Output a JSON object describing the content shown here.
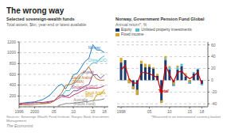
{
  "title": "The wrong way",
  "annotations": [
    {
      "text": "The Economist"
    }
  ],
  "chart_data": [
    {
      "type": "line",
      "title": "Selected sovereign-wealth funds",
      "ylabel": "Total assets, $bn, year-end or latest available",
      "source": "Sources: Sovereign Wealth Fund Institute; Norges Bank Investment Management",
      "grid": true,
      "xlim": [
        1996,
        2019
      ],
      "xticks": [
        1996,
        2000,
        {
          "value": 2005,
          "label": "05"
        },
        {
          "value": 2010,
          "label": "10"
        },
        {
          "value": 2015,
          "label": "15"
        },
        {
          "value": 2018,
          "label": "18"
        }
      ],
      "ylim": [
        0,
        1200
      ],
      "yticks": [
        200,
        400,
        600,
        800,
        1000,
        1200
      ],
      "series": [
        {
          "name": "Norway",
          "color": "#1f7bbf",
          "x": [
            1996,
            1997,
            1998,
            1999,
            2000,
            2001,
            2002,
            2003,
            2004,
            2005,
            2006,
            2007,
            2008,
            2009,
            2010,
            2011,
            2012,
            2013,
            2014,
            2015,
            2016,
            2017,
            2018
          ],
          "values": [
            40,
            65,
            80,
            85,
            90,
            110,
            130,
            170,
            220,
            300,
            380,
            420,
            330,
            450,
            590,
            620,
            730,
            840,
            900,
            1150,
            1050,
            1050,
            1000
          ]
        },
        {
          "name": "China (CIC)",
          "color": "#4db8d0",
          "x": [
            2007,
            2008,
            2009,
            2010,
            2011,
            2012,
            2013,
            2014,
            2015,
            2016,
            2017,
            2018
          ],
          "values": [
            200,
            298,
            300,
            410,
            480,
            575,
            652,
            747,
            814,
            813,
            900,
            941
          ]
        },
        {
          "name": "Kuwait",
          "color": "#7b4fa0",
          "x": [
            1996,
            1997,
            1998,
            1999,
            2000,
            2001,
            2002,
            2003,
            2004,
            2005,
            2006,
            2007,
            2008,
            2009,
            2010,
            2011,
            2012,
            2013,
            2014,
            2015,
            2016,
            2017,
            2018
          ],
          "values": [
            50,
            60,
            60,
            65,
            75,
            80,
            70,
            75,
            90,
            110,
            180,
            220,
            200,
            220,
            296,
            296,
            342,
            386,
            410,
            592,
            592,
            524,
            592
          ]
        },
        {
          "name": "Saudi Arabia (SAMA)",
          "color": "#c07030",
          "x": [
            1996,
            1997,
            1998,
            1999,
            2000,
            2001,
            2002,
            2003,
            2004,
            2005,
            2006,
            2007,
            2008,
            2009,
            2010,
            2011,
            2012,
            2013,
            2014,
            2015,
            2016,
            2017,
            2018
          ],
          "values": [
            35,
            40,
            35,
            35,
            45,
            55,
            55,
            60,
            70,
            105,
            185,
            260,
            400,
            410,
            430,
            550,
            620,
            650,
            740,
            600,
            514,
            488,
            496
          ]
        },
        {
          "name": "Singapore (GIC)",
          "color": "#c04070",
          "x": [
            1996,
            1997,
            1998,
            1999,
            2000,
            2001,
            2002,
            2003,
            2004,
            2005,
            2006,
            2007,
            2008,
            2009,
            2010,
            2011,
            2012,
            2013,
            2014,
            2015,
            2016,
            2017,
            2018
          ],
          "values": [
            60,
            70,
            65,
            70,
            80,
            80,
            80,
            90,
            100,
            110,
            150,
            190,
            180,
            170,
            220,
            247,
            285,
            320,
            344,
            344,
            344,
            359,
            390
          ]
        },
        {
          "name": "Saudi Arabia (PIF)",
          "color": "#d4a010",
          "x": [
            2015,
            2016,
            2017,
            2018
          ],
          "values": [
            90,
            224,
            224,
            320
          ]
        },
        {
          "name": "Australia (Future Fund)",
          "color": "#888888",
          "x": [
            2006,
            2007,
            2008,
            2009,
            2010,
            2011,
            2012,
            2013,
            2014,
            2015,
            2016,
            2017,
            2018
          ],
          "values": [
            20,
            40,
            60,
            60,
            68,
            75,
            83,
            95,
            100,
            117,
            122,
            130,
            148
          ]
        }
      ],
      "annotations": [
        {
          "text": "Norway",
          "x": 2013.8,
          "y": 1100,
          "color": "#1f7bbf"
        },
        {
          "text": "China (CIC)",
          "x": 2013.8,
          "y": 870,
          "color": "#4db8d0"
        },
        {
          "text": "Kuwait",
          "x": 2012.5,
          "y": 650,
          "color": "#7b4fa0"
        },
        {
          "text": "Saudi Arabia\n(SAMA)",
          "x": 2009.5,
          "y": 540,
          "color": "#c07030"
        },
        {
          "text": "Singapore (GIC)",
          "x": 2009.5,
          "y": 370,
          "color": "#c04070"
        },
        {
          "text": "Saudi Arabia\n(PIF)",
          "x": 2013.0,
          "y": 270,
          "color": "#d4a010"
        },
        {
          "text": "Australia\n(Future Fund)",
          "x": 2010.0,
          "y": 130,
          "color": "#888888"
        }
      ]
    },
    {
      "type": "bar",
      "stacked": true,
      "title": "Norway, Government Pension Fund Global",
      "subtitle": "Annual return*, %",
      "source": "*Measured in an international currency basket",
      "grid": true,
      "legend": "upper left",
      "xlim": [
        1997,
        2019.5
      ],
      "xticks": [
        1998,
        {
          "value": 2005,
          "label": "05"
        },
        {
          "value": 2010,
          "label": "10"
        },
        {
          "value": 2015,
          "label": "15"
        },
        {
          "value": 2018,
          "label": "18"
        }
      ],
      "ylim": [
        -45,
        65
      ],
      "yticks": [
        -40,
        -20,
        0,
        20,
        40,
        60
      ],
      "x": [
        1998,
        1999,
        2000,
        2001,
        2002,
        2003,
        2004,
        2005,
        2006,
        2007,
        2008,
        2009,
        2010,
        2011,
        2012,
        2013,
        2014,
        2015,
        2016,
        2017,
        2018
      ],
      "series": [
        {
          "name": "Equity",
          "color": "#1a3a6e",
          "values": [
            30,
            34,
            -5,
            -15,
            -25,
            28,
            22,
            23,
            20,
            8,
            -38,
            34,
            18,
            -10,
            18,
            24,
            6,
            -6,
            12,
            18,
            -8
          ]
        },
        {
          "name": "Unlisted property investments",
          "color": "#5bbcd9",
          "values": [
            0,
            0,
            0,
            0,
            0,
            0,
            0,
            0,
            0,
            0,
            0,
            3,
            4,
            3,
            4,
            4,
            3,
            3,
            2,
            2,
            2
          ]
        },
        {
          "name": "Fixed income",
          "color": "#d4a82a",
          "values": [
            8,
            0,
            8,
            5,
            9,
            5,
            6,
            4,
            2,
            3,
            4,
            4,
            2,
            4,
            3,
            0,
            3,
            3,
            0,
            0,
            0
          ]
        },
        {
          "name": "Total",
          "type": "line",
          "color": "#cc0000",
          "values": [
            18,
            25,
            2,
            -5,
            -5,
            13,
            13,
            11,
            7.9,
            4.3,
            -23,
            25.6,
            9.6,
            -2.5,
            13.4,
            15.9,
            7.6,
            2.7,
            6.9,
            13.7,
            -6.1
          ]
        }
      ],
      "annotations": [
        {
          "text": "Total",
          "x": 2007.2,
          "y": -18,
          "color": "#cc0000"
        }
      ]
    }
  ]
}
